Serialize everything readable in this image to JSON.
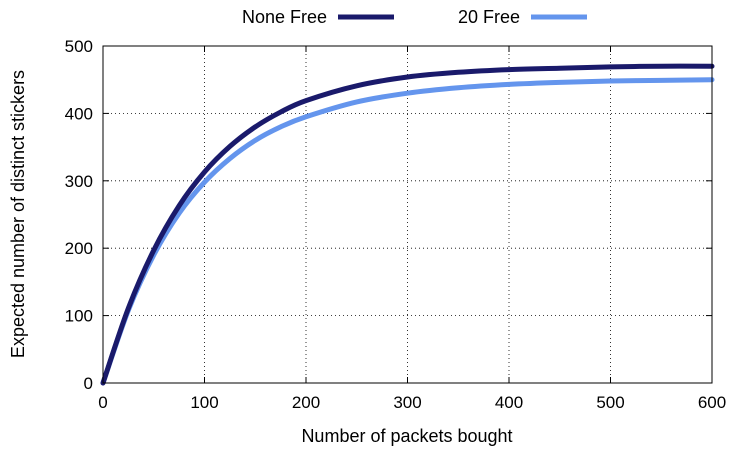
{
  "chart_data": {
    "type": "line",
    "title": "",
    "xlabel": "Number of packets bought",
    "ylabel": "Expected number of distinct stickers",
    "xlim": [
      0,
      600
    ],
    "ylim": [
      0,
      500
    ],
    "xticks": [
      "0",
      "100",
      "200",
      "300",
      "400",
      "500",
      "600"
    ],
    "yticks": [
      "0",
      "100",
      "200",
      "300",
      "400",
      "500"
    ],
    "grid": true,
    "legend_position": "top",
    "x": [
      0,
      25,
      50,
      75,
      100,
      125,
      150,
      175,
      200,
      250,
      300,
      350,
      400,
      450,
      500,
      550,
      600
    ],
    "series": [
      {
        "name": "None Free",
        "color": "#1a1a6b",
        "values": [
          0,
          111,
          197,
          263,
          313,
          351,
          380,
          402,
          419,
          441,
          454,
          461,
          465,
          467,
          469,
          470,
          470
        ]
      },
      {
        "name": "20 Free",
        "color": "#6495ed",
        "values": [
          0,
          108,
          190,
          252,
          298,
          333,
          360,
          380,
          395,
          417,
          430,
          438,
          443,
          446,
          448,
          449,
          450
        ]
      }
    ]
  }
}
